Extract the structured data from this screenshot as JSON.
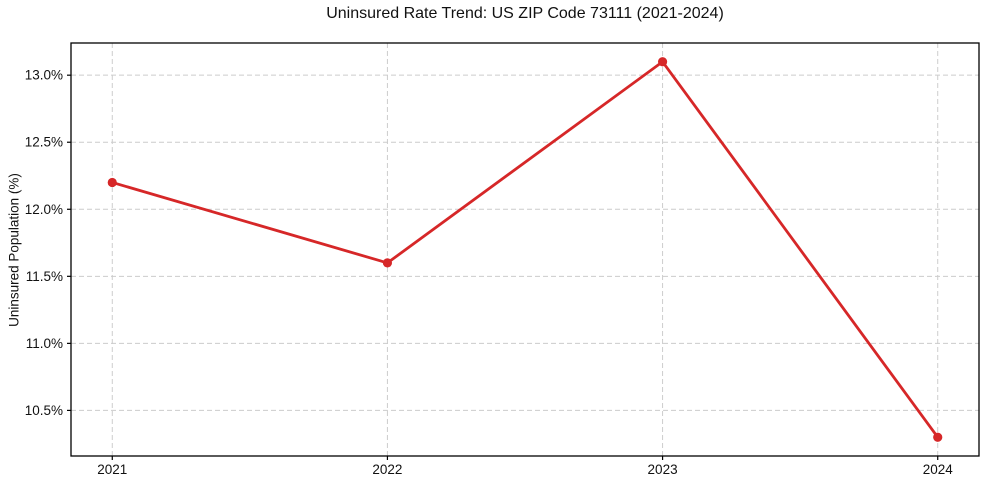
{
  "page": {
    "background_color": "#ffffff"
  },
  "chart_data": {
    "type": "line",
    "title": "Uninsured Rate Trend: US ZIP Code 73111 (2021-2024)",
    "xlabel": "",
    "ylabel": "Uninsured Population (%)",
    "x": [
      2021,
      2022,
      2023,
      2024
    ],
    "values": [
      12.2,
      11.6,
      13.1,
      10.3
    ],
    "x_tick_labels": [
      "2021",
      "2022",
      "2023",
      "2024"
    ],
    "y_tick_values": [
      10.5,
      11.0,
      11.5,
      12.0,
      12.5,
      13.0
    ],
    "y_tick_labels": [
      "10.5%",
      "11.0%",
      "11.5%",
      "12.0%",
      "12.5%",
      "13.0%"
    ],
    "xlim": [
      2020.85,
      2024.15
    ],
    "ylim": [
      10.16,
      13.24
    ],
    "grid": true,
    "grid_style": "dashed",
    "legend": "none",
    "marker": "circle",
    "line_color": "#d62728",
    "grid_color": "#cccccc",
    "frame_color": "#000000",
    "tick_color": "#000000",
    "text_color": "#111111"
  }
}
